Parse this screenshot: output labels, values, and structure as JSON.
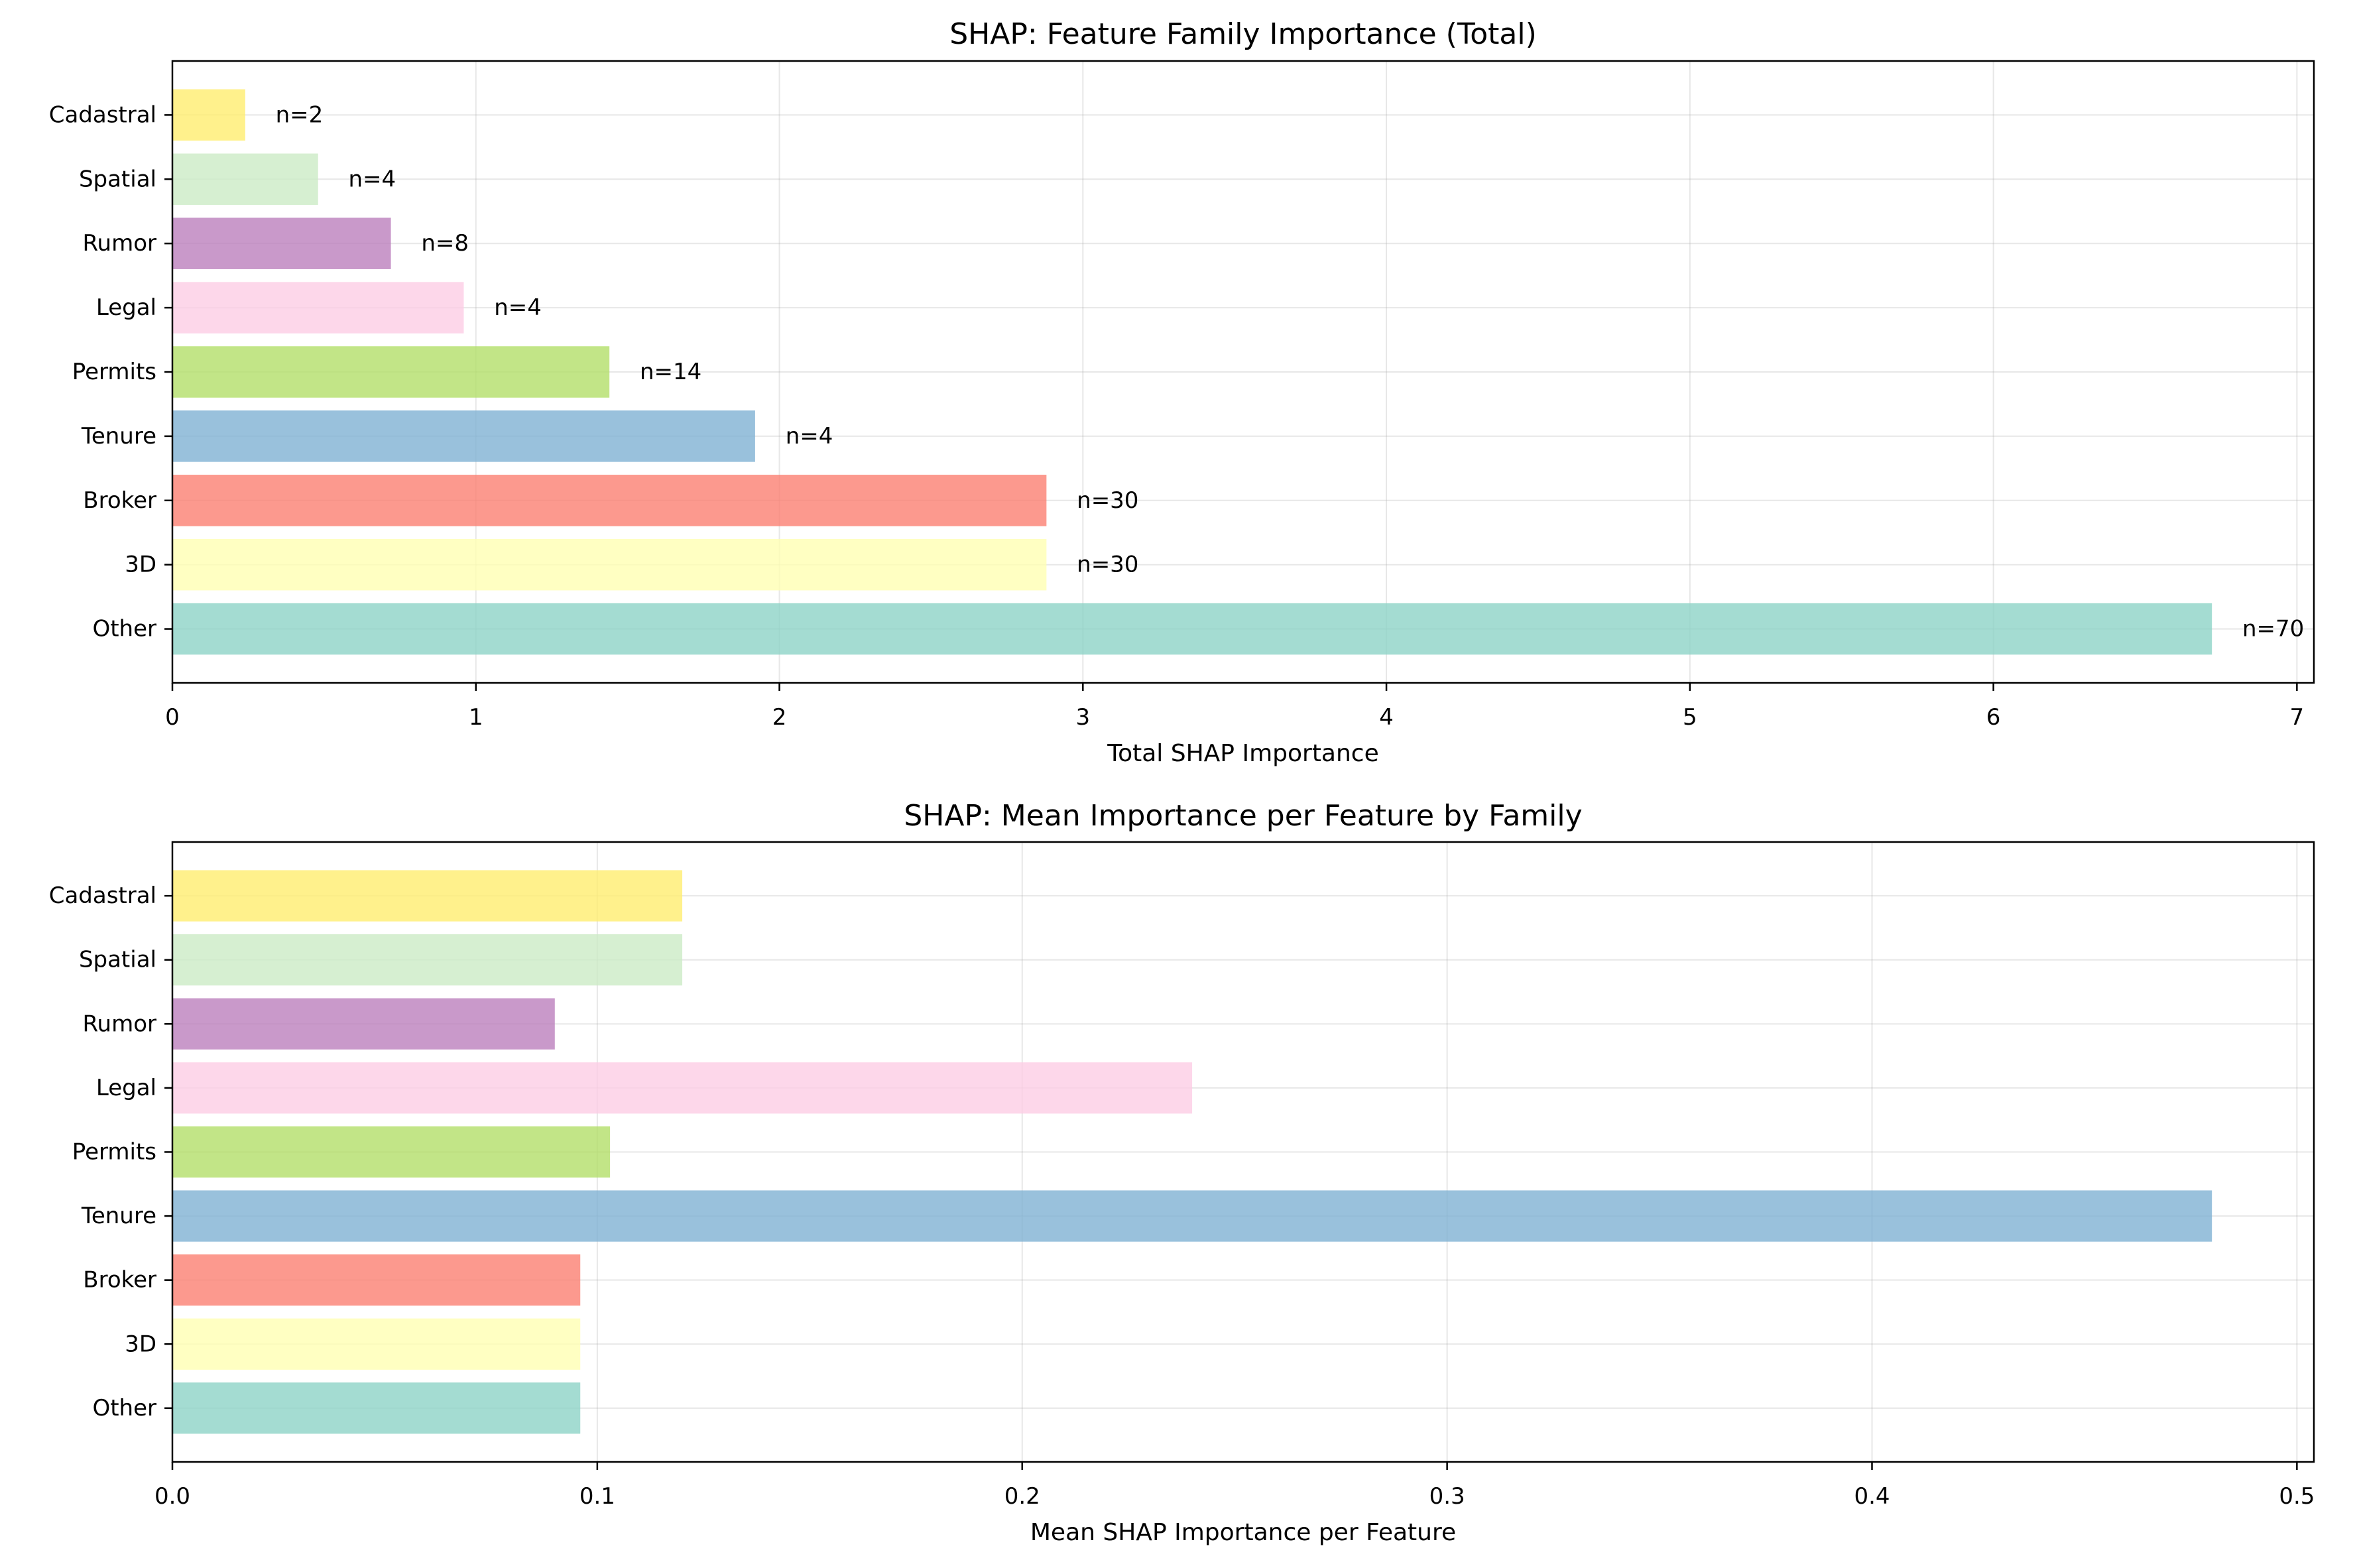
{
  "colors": {
    "Other": "#8dd3c7",
    "3D": "#ffffb3",
    "Broker": "#fb8072",
    "Tenure": "#80b1d3",
    "Permits": "#b3de69",
    "Legal": "#fccde5",
    "Rumor": "#bc80bd",
    "Spatial": "#ccebc5",
    "Cadastral": "#ffed6f"
  },
  "chart_data": [
    {
      "type": "bar",
      "orientation": "horizontal",
      "title": "SHAP: Feature Family Importance (Total)",
      "xlabel": "Total SHAP Importance",
      "ylabel": "",
      "categories": [
        "Other",
        "3D",
        "Broker",
        "Tenure",
        "Permits",
        "Legal",
        "Rumor",
        "Spatial",
        "Cadastral"
      ],
      "values": [
        6.72,
        2.88,
        2.88,
        1.92,
        1.44,
        0.96,
        0.72,
        0.48,
        0.24
      ],
      "annotations": [
        "n=70",
        "n=30",
        "n=30",
        "n=4",
        "n=14",
        "n=4",
        "n=8",
        "n=4",
        "n=2"
      ],
      "xlim": [
        0,
        7.056
      ],
      "xticks": [
        0,
        1,
        2,
        3,
        4,
        5,
        6,
        7
      ],
      "xtick_labels": [
        "0",
        "1",
        "2",
        "3",
        "4",
        "5",
        "6",
        "7"
      ],
      "grid": true
    },
    {
      "type": "bar",
      "orientation": "horizontal",
      "title": "SHAP: Mean Importance per Feature by Family",
      "xlabel": "Mean SHAP Importance per Feature",
      "ylabel": "",
      "categories": [
        "Other",
        "3D",
        "Broker",
        "Tenure",
        "Permits",
        "Legal",
        "Rumor",
        "Spatial",
        "Cadastral"
      ],
      "values": [
        0.096,
        0.096,
        0.096,
        0.48,
        0.103,
        0.24,
        0.09,
        0.12,
        0.12
      ],
      "xlim": [
        0,
        0.504
      ],
      "xticks": [
        0,
        0.1,
        0.2,
        0.3,
        0.4,
        0.5
      ],
      "xtick_labels": [
        "0.0",
        "0.1",
        "0.2",
        "0.3",
        "0.4",
        "0.5"
      ],
      "grid": true
    }
  ]
}
